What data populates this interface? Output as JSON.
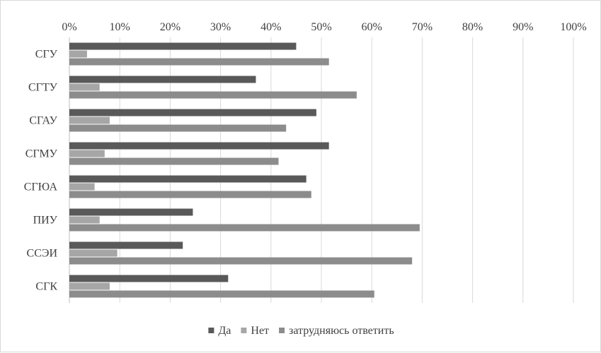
{
  "chart_data": {
    "type": "bar",
    "orientation": "horizontal",
    "categories": [
      "СГУ",
      "СГТУ",
      "СГАУ",
      "СГМУ",
      "СГЮА",
      "ПИУ",
      "ССЭИ",
      "СГК"
    ],
    "series": [
      {
        "name": "Да",
        "color": "#595959",
        "values": [
          45,
          37,
          49,
          51.5,
          47,
          24.5,
          22.5,
          31.5
        ]
      },
      {
        "name": "Нет",
        "color": "#a6a6a6",
        "values": [
          3.5,
          6,
          8,
          7,
          5,
          6,
          9.5,
          8
        ]
      },
      {
        "name": "затрудняюсь ответить",
        "color": "#8c8c8c",
        "values": [
          51.5,
          57,
          43,
          41.5,
          48,
          69.5,
          68,
          60.5
        ]
      }
    ],
    "x_ticks": [
      "0%",
      "10%",
      "20%",
      "30%",
      "40%",
      "50%",
      "60%",
      "70%",
      "80%",
      "90%",
      "100%"
    ],
    "xlim": [
      0,
      100
    ],
    "x_axis_position": "top",
    "grid": true,
    "legend_position": "bottom"
  }
}
